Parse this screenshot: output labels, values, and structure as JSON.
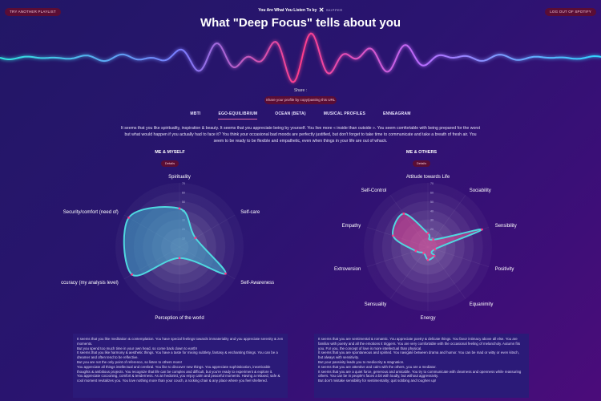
{
  "header": {
    "try_label": "TRY ANOTHER PLAYLIST",
    "logout_label": "LOG OUT OF SPOTIFY",
    "brand_text": "You Are What You Listen To by",
    "brand_name": "SKIPPER",
    "title": "What \"Deep Focus\" tells about you"
  },
  "share": {
    "label": "Share :",
    "button_label": "Share your profile by copy/pasting this URL"
  },
  "tabs": [
    {
      "label": "MBTI"
    },
    {
      "label": "EGO-EQUILIBRIUM"
    },
    {
      "label": "OCEAN (BETA)"
    },
    {
      "label": "MUSICAL PROFILES"
    },
    {
      "label": "ENNEAGRAM"
    }
  ],
  "active_tab": "EGO-EQUILIBRIUM",
  "intro": "It seems that you like spirituality, inspiration & beauty. It seems that you appreciate being by yourself. You live more « inside than outside ». You seem comfortable with being prepared for the worst but what would happen if you actually had to face it? You think your occasional bad moods are perfectly justified, but don't forget to take time to communicate and take a breath of fresh air. You seem to be ready to be flexible and empathetic, even when things in your life are out of whack.",
  "me": {
    "title": "ME & MYSELF",
    "details_label": "Details",
    "axes": [
      "Spirituality",
      "Self-care",
      "Self-Awareness",
      "Perception of the world",
      "Accuracy (my analysis level)",
      "Security/comfort (need of)"
    ],
    "ticks": [
      "70",
      "60",
      "50",
      "40",
      "30",
      "20",
      "10"
    ],
    "values": [
      42,
      20,
      58,
      12,
      60,
      64
    ],
    "description": [
      "It seems that you like meditation & contemplation. You have special feelings towards immateriality and you appreciate serenity & zen moments.",
      "But you spend too much time in your own head, so come back down to earth!",
      "It seems that you like harmony & aesthetic things. You have a taste for mixing subtlety, fantasy & enchanting things. You can be a dreamer and often tend to be reflective.",
      "But you are not the only point of reference, so listen to others more!",
      "You appreciate all things intellectual and cerebral. You like to discover new things. You appreciate sophistication, inextricable thoughts & ambitious projects. You recognize that life can be complex and difficult, but you're ready to experiment & explore it.",
      "You appreciate cocooning, comfort & tenderness. As an hedonist, you enjoy calm and peaceful moments. Having a relaxed, safe & cool moment revitalizes you. You love nothing more than your couch, a rocking chair & any place where you feel sheltered."
    ]
  },
  "others": {
    "title": "ME & OTHERS",
    "details_label": "Details",
    "axes": [
      "Attitude towards Life",
      "Sociability",
      "Sensibility",
      "Positivity",
      "Equanimity",
      "Energy",
      "Sensuality",
      "Extroversion",
      "Empathy",
      "Self-Control"
    ],
    "ticks": [
      "70",
      "60",
      "50",
      "40",
      "30",
      "20",
      "10"
    ],
    "values": [
      15,
      10,
      62,
      8,
      12,
      14,
      8,
      14,
      40,
      45
    ],
    "description": [
      "It seems that you are sentimental & romantic. You appreciate poetry & delicate things. You favor intimacy above all else. You are familiar with poetry and all the emotions it triggers. You are very comfortable with the occasional feeling of melancholy. Autumn fits you. For you, the concept of love is more intellectual than physical.",
      "It seems that you are spontaneous and spirited. You navigate between drama and humor. You can be mad or witty or even kitsch, but always with sensitivity.",
      "But your passivity leads you to mediocrity & stagnation.",
      "It seems that you are attentive and calm with the others, you are a mediator.",
      "It seems that you are a quiet force, generous and amicable. You try to communicate with clearness and openness while reassuring others. You can be in people's faces a bit with loudly, but without aggressivity.",
      "But don't mistake sensibility for sentimentality; quit sobbing and toughen up!"
    ]
  },
  "colors": {
    "accent_button": "#5a0d35",
    "outline": "#4fd8e0",
    "me_fill": "#3fa8c8",
    "others_fill": "#e0458f"
  }
}
